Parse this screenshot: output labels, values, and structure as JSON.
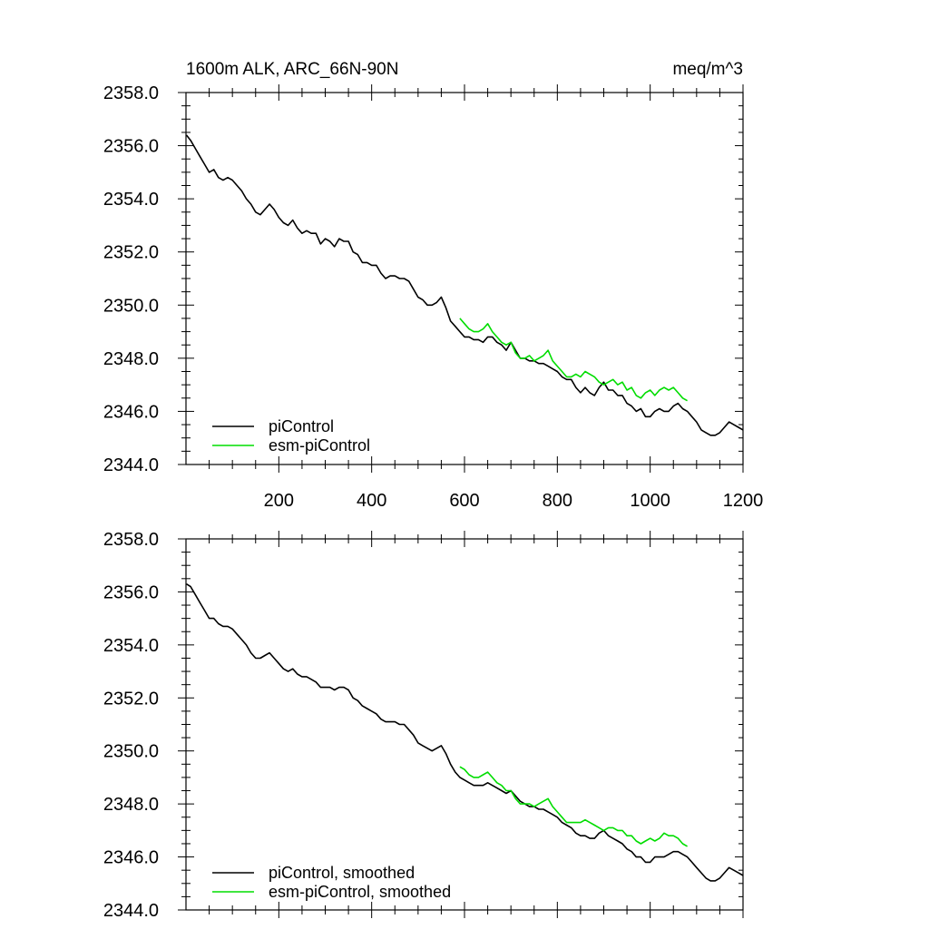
{
  "chart_data": [
    {
      "type": "line",
      "title": "1600m ALK, ARC_66N-90N",
      "units": "meq/m^3",
      "xlim": [
        0,
        1200
      ],
      "ylim": [
        2344.0,
        2358.0
      ],
      "xticks": [
        200,
        400,
        600,
        800,
        1000,
        1200
      ],
      "yticks": [
        "2344.0",
        "2346.0",
        "2348.0",
        "2350.0",
        "2352.0",
        "2354.0",
        "2356.0",
        "2358.0"
      ],
      "grid": false,
      "legend_position": "bottom-left",
      "series": [
        {
          "name": "piControl",
          "color": "#000000",
          "x": [
            1,
            10,
            20,
            30,
            40,
            50,
            60,
            70,
            80,
            90,
            100,
            110,
            120,
            130,
            140,
            150,
            160,
            170,
            180,
            190,
            200,
            210,
            220,
            230,
            240,
            250,
            260,
            270,
            280,
            290,
            300,
            310,
            320,
            330,
            340,
            350,
            360,
            370,
            380,
            390,
            400,
            410,
            420,
            430,
            440,
            450,
            460,
            470,
            480,
            490,
            500,
            510,
            520,
            530,
            540,
            550,
            560,
            570,
            580,
            590,
            600,
            610,
            620,
            630,
            640,
            650,
            660,
            670,
            680,
            690,
            700,
            710,
            720,
            730,
            740,
            750,
            760,
            770,
            780,
            790,
            800,
            810,
            820,
            830,
            840,
            850,
            860,
            870,
            880,
            890,
            900,
            910,
            920,
            930,
            940,
            950,
            960,
            970,
            980,
            990,
            1000,
            1010,
            1020,
            1030,
            1040,
            1050,
            1060,
            1070,
            1080,
            1090,
            1100,
            1110,
            1120,
            1130,
            1140,
            1150,
            1160,
            1170,
            1180,
            1190,
            1200
          ],
          "y": [
            2356.4,
            2356.2,
            2355.9,
            2355.6,
            2355.3,
            2355.0,
            2355.1,
            2354.8,
            2354.7,
            2354.8,
            2354.7,
            2354.5,
            2354.3,
            2354.0,
            2353.8,
            2353.5,
            2353.4,
            2353.6,
            2353.8,
            2353.6,
            2353.3,
            2353.1,
            2353.0,
            2353.2,
            2352.9,
            2352.7,
            2352.8,
            2352.7,
            2352.7,
            2352.3,
            2352.5,
            2352.4,
            2352.2,
            2352.5,
            2352.4,
            2352.4,
            2352.0,
            2351.9,
            2351.6,
            2351.6,
            2351.5,
            2351.5,
            2351.2,
            2351.0,
            2351.1,
            2351.1,
            2351.0,
            2351.0,
            2350.9,
            2350.6,
            2350.3,
            2350.2,
            2350.0,
            2350.0,
            2350.1,
            2350.3,
            2349.9,
            2349.4,
            2349.2,
            2349.0,
            2348.8,
            2348.8,
            2348.7,
            2348.7,
            2348.6,
            2348.8,
            2348.8,
            2348.6,
            2348.5,
            2348.3,
            2348.6,
            2348.3,
            2348.0,
            2348.0,
            2347.9,
            2347.9,
            2347.8,
            2347.8,
            2347.7,
            2347.6,
            2347.5,
            2347.3,
            2347.2,
            2347.2,
            2346.9,
            2346.7,
            2346.9,
            2346.7,
            2346.6,
            2346.9,
            2347.1,
            2346.8,
            2346.8,
            2346.6,
            2346.6,
            2346.3,
            2346.2,
            2346.0,
            2346.1,
            2345.8,
            2345.8,
            2346.0,
            2346.1,
            2346.0,
            2346.0,
            2346.2,
            2346.3,
            2346.1,
            2346.0,
            2345.8,
            2345.6,
            2345.3,
            2345.2,
            2345.1,
            2345.1,
            2345.2,
            2345.4,
            2345.6,
            2345.5,
            2345.4,
            2345.3
          ]
        },
        {
          "name": "esm-piControl",
          "color": "#00dd00",
          "x": [
            590,
            600,
            610,
            620,
            630,
            640,
            650,
            660,
            670,
            680,
            690,
            700,
            710,
            720,
            730,
            740,
            750,
            760,
            770,
            780,
            790,
            800,
            810,
            820,
            830,
            840,
            850,
            860,
            870,
            880,
            890,
            900,
            910,
            920,
            930,
            940,
            950,
            960,
            970,
            980,
            990,
            1000,
            1010,
            1020,
            1030,
            1040,
            1050,
            1060,
            1070,
            1080
          ],
          "y": [
            2349.5,
            2349.3,
            2349.1,
            2349.0,
            2349.0,
            2349.1,
            2349.3,
            2349.0,
            2348.8,
            2348.6,
            2348.5,
            2348.6,
            2348.2,
            2348.0,
            2348.0,
            2348.1,
            2347.9,
            2348.0,
            2348.1,
            2348.3,
            2347.9,
            2347.7,
            2347.5,
            2347.3,
            2347.3,
            2347.4,
            2347.3,
            2347.5,
            2347.4,
            2347.3,
            2347.1,
            2347.0,
            2347.1,
            2347.2,
            2347.0,
            2347.1,
            2346.8,
            2346.9,
            2346.6,
            2346.5,
            2346.7,
            2346.8,
            2346.6,
            2346.8,
            2346.9,
            2346.8,
            2346.9,
            2346.7,
            2346.5,
            2346.4
          ]
        }
      ]
    },
    {
      "type": "line",
      "xlim": [
        0,
        1200
      ],
      "ylim": [
        2344.0,
        2358.0
      ],
      "yticks": [
        "2344.0",
        "2346.0",
        "2348.0",
        "2350.0",
        "2352.0",
        "2354.0",
        "2356.0",
        "2358.0"
      ],
      "grid": false,
      "legend_position": "bottom-left",
      "series": [
        {
          "name": "piControl, smoothed",
          "color": "#000000",
          "x": [
            1,
            10,
            20,
            30,
            40,
            50,
            60,
            70,
            80,
            90,
            100,
            110,
            120,
            130,
            140,
            150,
            160,
            170,
            180,
            190,
            200,
            210,
            220,
            230,
            240,
            250,
            260,
            270,
            280,
            290,
            300,
            310,
            320,
            330,
            340,
            350,
            360,
            370,
            380,
            390,
            400,
            410,
            420,
            430,
            440,
            450,
            460,
            470,
            480,
            490,
            500,
            510,
            520,
            530,
            540,
            550,
            560,
            570,
            580,
            590,
            600,
            610,
            620,
            630,
            640,
            650,
            660,
            670,
            680,
            690,
            700,
            710,
            720,
            730,
            740,
            750,
            760,
            770,
            780,
            790,
            800,
            810,
            820,
            830,
            840,
            850,
            860,
            870,
            880,
            890,
            900,
            910,
            920,
            930,
            940,
            950,
            960,
            970,
            980,
            990,
            1000,
            1010,
            1020,
            1030,
            1040,
            1050,
            1060,
            1070,
            1080,
            1090,
            1100,
            1110,
            1120,
            1130,
            1140,
            1150,
            1160,
            1170,
            1180,
            1190,
            1200
          ],
          "y": [
            2356.3,
            2356.2,
            2355.9,
            2355.6,
            2355.3,
            2355.0,
            2355.0,
            2354.8,
            2354.7,
            2354.7,
            2354.6,
            2354.4,
            2354.2,
            2354.0,
            2353.7,
            2353.5,
            2353.5,
            2353.6,
            2353.7,
            2353.5,
            2353.3,
            2353.1,
            2353.0,
            2353.1,
            2352.9,
            2352.8,
            2352.8,
            2352.7,
            2352.6,
            2352.4,
            2352.4,
            2352.4,
            2352.3,
            2352.4,
            2352.4,
            2352.3,
            2352.0,
            2351.9,
            2351.7,
            2351.6,
            2351.5,
            2351.4,
            2351.2,
            2351.1,
            2351.1,
            2351.1,
            2351.0,
            2351.0,
            2350.8,
            2350.6,
            2350.3,
            2350.2,
            2350.1,
            2350.0,
            2350.1,
            2350.2,
            2349.9,
            2349.5,
            2349.2,
            2349.0,
            2348.9,
            2348.8,
            2348.7,
            2348.7,
            2348.7,
            2348.8,
            2348.7,
            2348.6,
            2348.5,
            2348.4,
            2348.5,
            2348.3,
            2348.1,
            2348.0,
            2347.9,
            2347.9,
            2347.8,
            2347.8,
            2347.7,
            2347.6,
            2347.5,
            2347.3,
            2347.2,
            2347.1,
            2346.9,
            2346.8,
            2346.8,
            2346.7,
            2346.7,
            2346.9,
            2347.0,
            2346.8,
            2346.7,
            2346.6,
            2346.5,
            2346.3,
            2346.2,
            2346.0,
            2346.0,
            2345.8,
            2345.8,
            2346.0,
            2346.0,
            2346.0,
            2346.1,
            2346.2,
            2346.2,
            2346.1,
            2346.0,
            2345.8,
            2345.6,
            2345.4,
            2345.2,
            2345.1,
            2345.1,
            2345.2,
            2345.4,
            2345.6,
            2345.5,
            2345.4,
            2345.3
          ]
        },
        {
          "name": "esm-piControl, smoothed",
          "color": "#00dd00",
          "x": [
            590,
            600,
            610,
            620,
            630,
            640,
            650,
            660,
            670,
            680,
            690,
            700,
            710,
            720,
            730,
            740,
            750,
            760,
            770,
            780,
            790,
            800,
            810,
            820,
            830,
            840,
            850,
            860,
            870,
            880,
            890,
            900,
            910,
            920,
            930,
            940,
            950,
            960,
            970,
            980,
            990,
            1000,
            1010,
            1020,
            1030,
            1040,
            1050,
            1060,
            1070,
            1080
          ],
          "y": [
            2349.4,
            2349.3,
            2349.1,
            2349.0,
            2349.0,
            2349.1,
            2349.2,
            2349.0,
            2348.8,
            2348.7,
            2348.5,
            2348.5,
            2348.2,
            2348.0,
            2348.0,
            2348.0,
            2347.9,
            2348.0,
            2348.1,
            2348.2,
            2347.9,
            2347.7,
            2347.5,
            2347.3,
            2347.3,
            2347.3,
            2347.3,
            2347.4,
            2347.3,
            2347.2,
            2347.1,
            2347.0,
            2347.1,
            2347.1,
            2347.0,
            2347.0,
            2346.8,
            2346.8,
            2346.6,
            2346.5,
            2346.6,
            2346.7,
            2346.6,
            2346.7,
            2346.9,
            2346.8,
            2346.8,
            2346.7,
            2346.5,
            2346.4
          ]
        }
      ]
    }
  ]
}
